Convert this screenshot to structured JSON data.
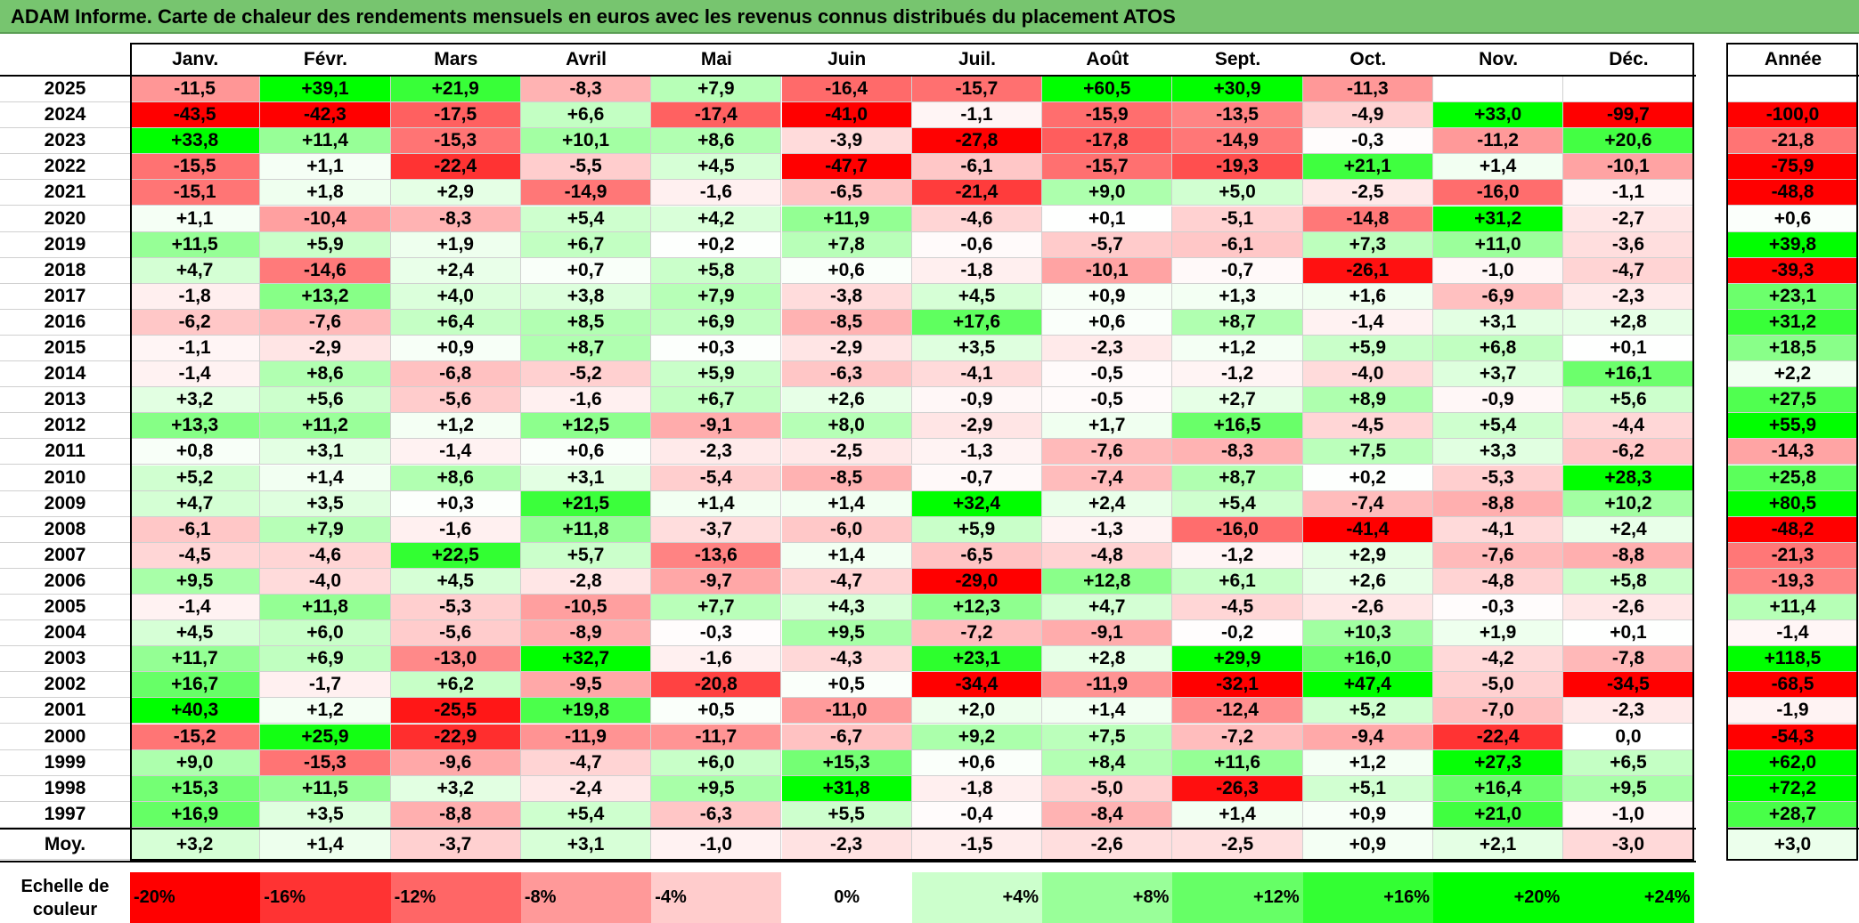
{
  "title": "ADAM Informe. Carte de chaleur des rendements mensuels en euros avec les revenus connus distribués du placement ATOS",
  "chart_data": {
    "type": "heatmap",
    "months": [
      "Janv.",
      "Févr.",
      "Mars",
      "Avril",
      "Mai",
      "Juin",
      "Juil.",
      "Août",
      "Sept.",
      "Oct.",
      "Nov.",
      "Déc."
    ],
    "annual_header": "Année",
    "average_label": "Moy.",
    "rows": [
      {
        "year": "2025",
        "values": [
          "-11,5",
          "+39,1",
          "+21,9",
          "-8,3",
          "+7,9",
          "-16,4",
          "-15,7",
          "+60,5",
          "+30,9",
          "-11,3",
          "",
          ""
        ],
        "annual": ""
      },
      {
        "year": "2024",
        "values": [
          "-43,5",
          "-42,3",
          "-17,5",
          "+6,6",
          "-17,4",
          "-41,0",
          "-1,1",
          "-15,9",
          "-13,5",
          "-4,9",
          "+33,0",
          "-99,7"
        ],
        "annual": "-100,0"
      },
      {
        "year": "2023",
        "values": [
          "+33,8",
          "+11,4",
          "-15,3",
          "+10,1",
          "+8,6",
          "-3,9",
          "-27,8",
          "-17,8",
          "-14,9",
          "-0,3",
          "-11,2",
          "+20,6"
        ],
        "annual": "-21,8"
      },
      {
        "year": "2022",
        "values": [
          "-15,5",
          "+1,1",
          "-22,4",
          "-5,5",
          "+4,5",
          "-47,7",
          "-6,1",
          "-15,7",
          "-19,3",
          "+21,1",
          "+1,4",
          "-10,1"
        ],
        "annual": "-75,9"
      },
      {
        "year": "2021",
        "values": [
          "-15,1",
          "+1,8",
          "+2,9",
          "-14,9",
          "-1,6",
          "-6,5",
          "-21,4",
          "+9,0",
          "+5,0",
          "-2,5",
          "-16,0",
          "-1,1"
        ],
        "annual": "-48,8"
      },
      {
        "year": "2020",
        "values": [
          "+1,1",
          "-10,4",
          "-8,3",
          "+5,4",
          "+4,2",
          "+11,9",
          "-4,6",
          "+0,1",
          "-5,1",
          "-14,8",
          "+31,2",
          "-2,7"
        ],
        "annual": "+0,6"
      },
      {
        "year": "2019",
        "values": [
          "+11,5",
          "+5,9",
          "+1,9",
          "+6,7",
          "+0,2",
          "+7,8",
          "-0,6",
          "-5,7",
          "-6,1",
          "+7,3",
          "+11,0",
          "-3,6"
        ],
        "annual": "+39,8"
      },
      {
        "year": "2018",
        "values": [
          "+4,7",
          "-14,6",
          "+2,4",
          "+0,7",
          "+5,8",
          "+0,6",
          "-1,8",
          "-10,1",
          "-0,7",
          "-26,1",
          "-1,0",
          "-4,7"
        ],
        "annual": "-39,3"
      },
      {
        "year": "2017",
        "values": [
          "-1,8",
          "+13,2",
          "+4,0",
          "+3,8",
          "+7,9",
          "-3,8",
          "+4,5",
          "+0,9",
          "+1,3",
          "+1,6",
          "-6,9",
          "-2,3"
        ],
        "annual": "+23,1"
      },
      {
        "year": "2016",
        "values": [
          "-6,2",
          "-7,6",
          "+6,4",
          "+8,5",
          "+6,9",
          "-8,5",
          "+17,6",
          "+0,6",
          "+8,7",
          "-1,4",
          "+3,1",
          "+2,8"
        ],
        "annual": "+31,2"
      },
      {
        "year": "2015",
        "values": [
          "-1,1",
          "-2,9",
          "+0,9",
          "+8,7",
          "+0,3",
          "-2,9",
          "+3,5",
          "-2,3",
          "+1,2",
          "+5,9",
          "+6,8",
          "+0,1"
        ],
        "annual": "+18,5"
      },
      {
        "year": "2014",
        "values": [
          "-1,4",
          "+8,6",
          "-6,8",
          "-5,2",
          "+5,9",
          "-6,3",
          "-4,1",
          "-0,5",
          "-1,2",
          "-4,0",
          "+3,7",
          "+16,1"
        ],
        "annual": "+2,2"
      },
      {
        "year": "2013",
        "values": [
          "+3,2",
          "+5,6",
          "-5,6",
          "-1,6",
          "+6,7",
          "+2,6",
          "-0,9",
          "-0,5",
          "+2,7",
          "+8,9",
          "-0,9",
          "+5,6"
        ],
        "annual": "+27,5"
      },
      {
        "year": "2012",
        "values": [
          "+13,3",
          "+11,2",
          "+1,2",
          "+12,5",
          "-9,1",
          "+8,0",
          "-2,9",
          "+1,7",
          "+16,5",
          "-4,5",
          "+5,4",
          "-4,4"
        ],
        "annual": "+55,9"
      },
      {
        "year": "2011",
        "values": [
          "+0,8",
          "+3,1",
          "-1,4",
          "+0,6",
          "-2,3",
          "-2,5",
          "-1,3",
          "-7,6",
          "-8,3",
          "+7,5",
          "+3,3",
          "-6,2"
        ],
        "annual": "-14,3"
      },
      {
        "year": "2010",
        "values": [
          "+5,2",
          "+1,4",
          "+8,6",
          "+3,1",
          "-5,4",
          "-8,5",
          "-0,7",
          "-7,4",
          "+8,7",
          "+0,2",
          "-5,3",
          "+28,3"
        ],
        "annual": "+25,8"
      },
      {
        "year": "2009",
        "values": [
          "+4,7",
          "+3,5",
          "+0,3",
          "+21,5",
          "+1,4",
          "+1,4",
          "+32,4",
          "+2,4",
          "+5,4",
          "-7,4",
          "-8,8",
          "+10,2"
        ],
        "annual": "+80,5"
      },
      {
        "year": "2008",
        "values": [
          "-6,1",
          "+7,9",
          "-1,6",
          "+11,8",
          "-3,7",
          "-6,0",
          "+5,9",
          "-1,3",
          "-16,0",
          "-41,4",
          "-4,1",
          "+2,4"
        ],
        "annual": "-48,2"
      },
      {
        "year": "2007",
        "values": [
          "-4,5",
          "-4,6",
          "+22,5",
          "+5,7",
          "-13,6",
          "+1,4",
          "-6,5",
          "-4,8",
          "-1,2",
          "+2,9",
          "-7,6",
          "-8,8"
        ],
        "annual": "-21,3"
      },
      {
        "year": "2006",
        "values": [
          "+9,5",
          "-4,0",
          "+4,5",
          "-2,8",
          "-9,7",
          "-4,7",
          "-29,0",
          "+12,8",
          "+6,1",
          "+2,6",
          "-4,8",
          "+5,8"
        ],
        "annual": "-19,3"
      },
      {
        "year": "2005",
        "values": [
          "-1,4",
          "+11,8",
          "-5,3",
          "-10,5",
          "+7,7",
          "+4,3",
          "+12,3",
          "+4,7",
          "-4,5",
          "-2,6",
          "-0,3",
          "-2,6"
        ],
        "annual": "+11,4"
      },
      {
        "year": "2004",
        "values": [
          "+4,5",
          "+6,0",
          "-5,6",
          "-8,9",
          "-0,3",
          "+9,5",
          "-7,2",
          "-9,1",
          "-0,2",
          "+10,3",
          "+1,9",
          "+0,1"
        ],
        "annual": "-1,4"
      },
      {
        "year": "2003",
        "values": [
          "+11,7",
          "+6,9",
          "-13,0",
          "+32,7",
          "-1,6",
          "-4,3",
          "+23,1",
          "+2,8",
          "+29,9",
          "+16,0",
          "-4,2",
          "-7,8"
        ],
        "annual": "+118,5"
      },
      {
        "year": "2002",
        "values": [
          "+16,7",
          "-1,7",
          "+6,2",
          "-9,5",
          "-20,8",
          "+0,5",
          "-34,4",
          "-11,9",
          "-32,1",
          "+47,4",
          "-5,0",
          "-34,5"
        ],
        "annual": "-68,5"
      },
      {
        "year": "2001",
        "values": [
          "+40,3",
          "+1,2",
          "-25,5",
          "+19,8",
          "+0,5",
          "-11,0",
          "+2,0",
          "+1,4",
          "-12,4",
          "+5,2",
          "-7,0",
          "-2,3"
        ],
        "annual": "-1,9"
      },
      {
        "year": "2000",
        "values": [
          "-15,2",
          "+25,9",
          "-22,9",
          "-11,9",
          "-11,7",
          "-6,7",
          "+9,2",
          "+7,5",
          "-7,2",
          "-9,4",
          "-22,4",
          "0,0"
        ],
        "annual": "-54,3"
      },
      {
        "year": "1999",
        "values": [
          "+9,0",
          "-15,3",
          "-9,6",
          "-4,7",
          "+6,0",
          "+15,3",
          "+0,6",
          "+8,4",
          "+11,6",
          "+1,2",
          "+27,3",
          "+6,5"
        ],
        "annual": "+62,0"
      },
      {
        "year": "1998",
        "values": [
          "+15,3",
          "+11,5",
          "+3,2",
          "-2,4",
          "+9,5",
          "+31,8",
          "-1,8",
          "-5,0",
          "-26,3",
          "+5,1",
          "+16,4",
          "+9,5"
        ],
        "annual": "+72,2"
      },
      {
        "year": "1997",
        "values": [
          "+16,9",
          "+3,5",
          "-8,8",
          "+5,4",
          "-6,3",
          "+5,5",
          "-0,4",
          "-8,4",
          "+1,4",
          "+0,9",
          "+21,0",
          "-1,0"
        ],
        "annual": "+28,7"
      }
    ],
    "averages": [
      "+3,2",
      "+1,4",
      "-3,7",
      "+3,1",
      "-1,0",
      "-2,3",
      "-1,5",
      "-2,6",
      "-2,5",
      "+0,9",
      "+2,1",
      "-3,0"
    ],
    "average_annual": "+3,0",
    "scale_label_line1": "Echelle de",
    "scale_label_line2": "couleur",
    "scale": [
      "-20%",
      "-16%",
      "-12%",
      "-8%",
      "-4%",
      "0%",
      "+4%",
      "+8%",
      "+12%",
      "+16%",
      "+20%",
      "+24%"
    ],
    "colors": {
      "negative_max": "#ff0000",
      "positive_max": "#00ff00",
      "neutral": "#ffffff"
    }
  }
}
